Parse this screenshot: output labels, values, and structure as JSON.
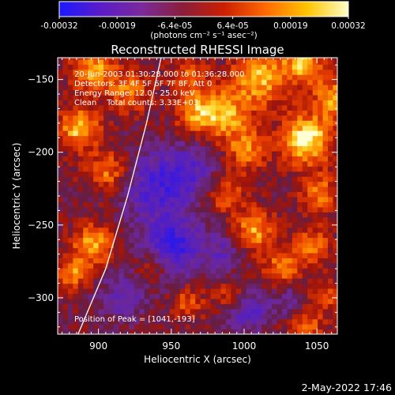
{
  "colorbar": {
    "ticks": [
      "-0.00032",
      "-0.00019",
      "-6.4e-05",
      "6.4e-05",
      "0.00019",
      "0.00032"
    ],
    "unit_label": "(photons cm⁻² s⁻¹ asec⁻²)",
    "range": [
      -0.00032,
      0.00032
    ],
    "colors": [
      "#1a1aff",
      "#5a1cc8",
      "#7a2a9a",
      "#8a1e3a",
      "#cc1f00",
      "#ff6a00",
      "#ffc400",
      "#ffffc8"
    ]
  },
  "chart_data": {
    "type": "heatmap",
    "title": "Reconstructed RHESSI Image",
    "xlabel": "Heliocentric X (arcsec)",
    "ylabel": "Heliocentric Y (arcsec)",
    "xlim": [
      872,
      1064
    ],
    "ylim": [
      -325,
      -135
    ],
    "x_ticks": [
      900,
      950,
      1000,
      1050
    ],
    "y_ticks": [
      -150,
      -200,
      -250,
      -300
    ],
    "annotations": [
      "20-Jun-2003 01:30:28.000 to 01:36:28.000",
      "Detectors: 3F 4F 5F 6F 7F 8F, Att 0",
      "Energy Range: 12.0 - 25.0 keV",
      "Clean    Total counts: 3.33E+03"
    ],
    "peak_label": "Position of Peak = [1041,-193]",
    "peak": [
      1041,
      -193
    ],
    "limb_curve": [
      [
        886,
        -325
      ],
      [
        905,
        -280
      ],
      [
        920,
        -230
      ],
      [
        933,
        -180
      ],
      [
        943,
        -135
      ]
    ],
    "blobs": [
      {
        "x": 1041,
        "y": -193,
        "amp": 1.0,
        "r": 12
      },
      {
        "x": 1060,
        "y": -165,
        "amp": 0.7,
        "r": 10
      },
      {
        "x": 1010,
        "y": -150,
        "amp": 0.75,
        "r": 14
      },
      {
        "x": 1040,
        "y": -140,
        "amp": 0.7,
        "r": 10
      },
      {
        "x": 985,
        "y": -175,
        "amp": 0.7,
        "r": 12
      },
      {
        "x": 965,
        "y": -175,
        "amp": 0.6,
        "r": 10
      },
      {
        "x": 1000,
        "y": -200,
        "amp": 0.6,
        "r": 10
      },
      {
        "x": 895,
        "y": -145,
        "amp": 0.7,
        "r": 11
      },
      {
        "x": 885,
        "y": -185,
        "amp": 0.8,
        "r": 10
      },
      {
        "x": 905,
        "y": -215,
        "amp": 0.6,
        "r": 10
      },
      {
        "x": 920,
        "y": -160,
        "amp": 0.55,
        "r": 10
      },
      {
        "x": 895,
        "y": -265,
        "amp": 0.75,
        "r": 10
      },
      {
        "x": 880,
        "y": -285,
        "amp": 0.6,
        "r": 8
      },
      {
        "x": 1005,
        "y": -255,
        "amp": 0.7,
        "r": 10
      },
      {
        "x": 1025,
        "y": -280,
        "amp": 0.6,
        "r": 9
      },
      {
        "x": 1045,
        "y": -265,
        "amp": 0.55,
        "r": 9
      },
      {
        "x": 1050,
        "y": -230,
        "amp": 0.6,
        "r": 9
      },
      {
        "x": 985,
        "y": -230,
        "amp": 0.55,
        "r": 9
      },
      {
        "x": 960,
        "y": -305,
        "amp": 0.45,
        "r": 8
      },
      {
        "x": 990,
        "y": -300,
        "amp": 0.45,
        "r": 8
      },
      {
        "x": 1040,
        "y": -320,
        "amp": 0.5,
        "r": 9
      },
      {
        "x": 1055,
        "y": -300,
        "amp": 0.45,
        "r": 8
      },
      {
        "x": 935,
        "y": -280,
        "amp": 0.35,
        "r": 8
      },
      {
        "x": 960,
        "y": -150,
        "amp": 0.5,
        "r": 9
      },
      {
        "x": 950,
        "y": -265,
        "amp": -0.8,
        "r": 14
      },
      {
        "x": 935,
        "y": -225,
        "amp": -0.6,
        "r": 16
      },
      {
        "x": 960,
        "y": -215,
        "amp": -0.5,
        "r": 14
      },
      {
        "x": 1000,
        "y": -310,
        "amp": -0.6,
        "r": 10
      },
      {
        "x": 915,
        "y": -300,
        "amp": -0.4,
        "r": 12
      },
      {
        "x": 985,
        "y": -270,
        "amp": -0.4,
        "r": 10
      },
      {
        "x": 1030,
        "y": -305,
        "amp": -0.35,
        "r": 9
      }
    ]
  },
  "footer": {
    "date": "2-May-2022 17:46"
  }
}
